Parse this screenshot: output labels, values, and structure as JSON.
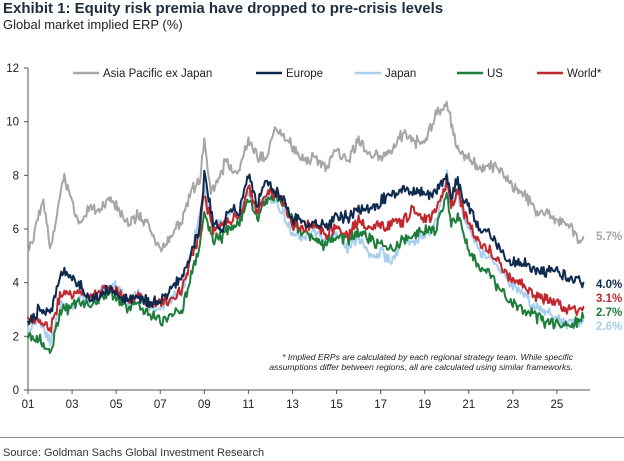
{
  "header": {
    "title": "Exhibit 1: Equity risk premia have dropped to pre-crisis levels",
    "subtitle": "Global market implied ERP (%)"
  },
  "footer": {
    "source": "Source: Goldman Sachs Global Investment Research"
  },
  "chart_data": {
    "type": "line",
    "title": "Global market implied ERP (%)",
    "xlabel": "",
    "ylabel": "",
    "xlim": [
      2001,
      2026.5
    ],
    "ylim": [
      0,
      12
    ],
    "yticks": [
      0,
      2,
      4,
      6,
      8,
      10,
      12
    ],
    "xticks": [
      {
        "value": 2001,
        "label": "01"
      },
      {
        "value": 2003,
        "label": "03"
      },
      {
        "value": 2005,
        "label": "05"
      },
      {
        "value": 2007,
        "label": "07"
      },
      {
        "value": 2009,
        "label": "09"
      },
      {
        "value": 2011,
        "label": "11"
      },
      {
        "value": 2013,
        "label": "13"
      },
      {
        "value": 2015,
        "label": "15"
      },
      {
        "value": 2017,
        "label": "17"
      },
      {
        "value": 2019,
        "label": "19"
      },
      {
        "value": 2021,
        "label": "21"
      },
      {
        "value": 2023,
        "label": "23"
      },
      {
        "value": 2025,
        "label": "25"
      }
    ],
    "grid": false,
    "legend_position": "top",
    "annotation": "* Implied ERPs are calculated by each regional strategy team. While specific assumptions differ between regions, all are calculated using similar frameworks.",
    "series": [
      {
        "name": "Asia Pacific ex Japan",
        "color": "#a6a6a6",
        "end_label": "5.7%",
        "x": [
          2001.0,
          2001.3,
          2001.7,
          2002.0,
          2002.3,
          2002.6,
          2003.0,
          2003.4,
          2003.8,
          2004.2,
          2004.6,
          2005.0,
          2005.5,
          2006.0,
          2006.5,
          2007.0,
          2007.5,
          2008.0,
          2008.4,
          2008.8,
          2009.0,
          2009.3,
          2009.7,
          2010.0,
          2010.5,
          2011.0,
          2011.5,
          2011.9,
          2012.2,
          2012.6,
          2013.0,
          2013.5,
          2014.0,
          2014.5,
          2015.0,
          2015.5,
          2016.0,
          2016.5,
          2017.0,
          2017.5,
          2018.0,
          2018.5,
          2019.0,
          2019.5,
          2020.0,
          2020.2,
          2020.5,
          2020.8,
          2021.0,
          2021.5,
          2022.0,
          2022.5,
          2023.0,
          2023.5,
          2024.0,
          2024.5,
          2025.0,
          2025.5,
          2026.0,
          2026.2
        ],
        "y": [
          5.1,
          5.8,
          7.1,
          5.3,
          6.4,
          8.0,
          6.9,
          6.2,
          6.8,
          6.7,
          7.0,
          6.9,
          6.2,
          6.5,
          6.1,
          5.2,
          5.8,
          6.4,
          7.4,
          7.8,
          9.3,
          7.4,
          7.9,
          8.6,
          7.9,
          9.3,
          8.6,
          8.9,
          9.8,
          9.5,
          9.1,
          8.5,
          8.7,
          8.2,
          9.0,
          8.5,
          9.3,
          8.8,
          8.7,
          8.9,
          9.6,
          9.3,
          9.1,
          10.3,
          10.7,
          10.0,
          9.0,
          8.6,
          8.7,
          8.2,
          8.4,
          8.1,
          7.5,
          7.4,
          6.6,
          6.6,
          6.2,
          6.3,
          5.6,
          5.7
        ]
      },
      {
        "name": "Europe",
        "color": "#0e2a4f",
        "end_label": "4.0%",
        "x": [
          2001.0,
          2001.5,
          2002.0,
          2002.5,
          2003.0,
          2003.4,
          2003.8,
          2004.2,
          2004.6,
          2005.0,
          2005.5,
          2006.0,
          2006.5,
          2007.0,
          2007.5,
          2008.0,
          2008.4,
          2008.8,
          2009.0,
          2009.4,
          2009.8,
          2010.2,
          2010.6,
          2011.0,
          2011.4,
          2011.8,
          2012.2,
          2012.6,
          2013.0,
          2013.5,
          2014.0,
          2014.5,
          2015.0,
          2015.5,
          2016.0,
          2016.5,
          2017.0,
          2017.5,
          2018.0,
          2018.5,
          2019.0,
          2019.5,
          2020.0,
          2020.2,
          2020.5,
          2020.8,
          2021.0,
          2021.5,
          2022.0,
          2022.5,
          2023.0,
          2023.5,
          2024.0,
          2024.5,
          2025.0,
          2025.5,
          2026.0,
          2026.2
        ],
        "y": [
          2.4,
          3.0,
          2.8,
          4.4,
          4.2,
          3.9,
          3.4,
          3.5,
          3.7,
          3.6,
          3.3,
          3.4,
          3.3,
          3.3,
          3.7,
          4.2,
          5.2,
          6.1,
          8.0,
          6.3,
          6.0,
          6.8,
          6.6,
          8.1,
          6.8,
          7.9,
          7.4,
          7.1,
          6.4,
          6.2,
          6.3,
          6.0,
          6.6,
          6.4,
          6.8,
          6.7,
          7.0,
          7.3,
          7.4,
          7.5,
          7.3,
          7.4,
          8.0,
          7.2,
          7.8,
          7.1,
          6.8,
          6.0,
          5.8,
          5.1,
          4.7,
          4.8,
          4.5,
          4.4,
          4.5,
          4.1,
          4.1,
          4.0
        ]
      },
      {
        "name": "Japan",
        "color": "#a8cfee",
        "end_label": "2.6%",
        "x": [
          2001.0,
          2001.5,
          2002.0,
          2002.5,
          2003.0,
          2003.4,
          2003.8,
          2004.2,
          2004.6,
          2005.0,
          2005.5,
          2006.0,
          2006.5,
          2007.0,
          2007.5,
          2008.0,
          2008.4,
          2008.8,
          2009.0,
          2009.4,
          2009.8,
          2010.2,
          2010.6,
          2011.0,
          2011.4,
          2011.8,
          2012.2,
          2012.6,
          2013.0,
          2013.5,
          2014.0,
          2014.5,
          2015.0,
          2015.5,
          2016.0,
          2016.5,
          2017.0,
          2017.5,
          2018.0,
          2018.5,
          2019.0,
          2019.5,
          2020.0,
          2020.2,
          2020.5,
          2020.8,
          2021.0,
          2021.5,
          2022.0,
          2022.5,
          2023.0,
          2023.5,
          2024.0,
          2024.5,
          2025.0,
          2025.5,
          2026.0,
          2026.2
        ],
        "y": [
          2.2,
          2.6,
          1.8,
          3.2,
          3.0,
          3.5,
          3.3,
          3.7,
          3.8,
          3.9,
          3.2,
          3.6,
          3.2,
          3.1,
          3.4,
          3.7,
          5.0,
          6.5,
          7.5,
          6.2,
          6.2,
          6.6,
          6.4,
          7.5,
          6.6,
          7.2,
          7.0,
          6.6,
          5.8,
          5.7,
          5.9,
          5.6,
          5.8,
          5.3,
          5.7,
          5.0,
          5.1,
          4.8,
          5.6,
          5.6,
          5.7,
          6.2,
          8.0,
          6.8,
          7.4,
          6.4,
          6.1,
          5.2,
          4.9,
          4.5,
          3.9,
          3.6,
          3.1,
          2.9,
          2.6,
          2.4,
          2.4,
          2.6
        ]
      },
      {
        "name": "US",
        "color": "#1e7d3a",
        "end_label": "2.7%",
        "x": [
          2001.0,
          2001.5,
          2002.0,
          2002.5,
          2003.0,
          2003.4,
          2003.8,
          2004.2,
          2004.6,
          2005.0,
          2005.5,
          2006.0,
          2006.5,
          2007.0,
          2007.5,
          2008.0,
          2008.4,
          2008.8,
          2009.0,
          2009.4,
          2009.8,
          2010.2,
          2010.6,
          2011.0,
          2011.4,
          2011.8,
          2012.2,
          2012.6,
          2013.0,
          2013.5,
          2014.0,
          2014.5,
          2015.0,
          2015.5,
          2016.0,
          2016.5,
          2017.0,
          2017.5,
          2018.0,
          2018.5,
          2019.0,
          2019.5,
          2020.0,
          2020.2,
          2020.5,
          2020.8,
          2021.0,
          2021.5,
          2022.0,
          2022.5,
          2023.0,
          2023.5,
          2024.0,
          2024.5,
          2025.0,
          2025.5,
          2026.0,
          2026.2
        ],
        "y": [
          2.0,
          1.9,
          1.3,
          3.0,
          3.1,
          3.3,
          3.2,
          3.4,
          3.6,
          3.5,
          3.0,
          3.2,
          2.8,
          2.6,
          2.8,
          3.0,
          4.3,
          5.4,
          6.7,
          5.6,
          5.7,
          6.1,
          6.3,
          7.2,
          6.4,
          7.0,
          7.2,
          6.9,
          6.3,
          5.9,
          5.6,
          5.4,
          5.8,
          5.6,
          5.9,
          5.6,
          5.4,
          5.3,
          5.6,
          5.8,
          5.9,
          5.9,
          7.3,
          6.2,
          6.5,
          5.8,
          5.2,
          4.5,
          4.3,
          3.6,
          3.3,
          3.0,
          2.8,
          2.5,
          2.5,
          2.3,
          2.6,
          2.7
        ]
      },
      {
        "name": "World*",
        "color": "#c0282d",
        "end_label": "3.1%",
        "x": [
          2001.0,
          2001.5,
          2002.0,
          2002.5,
          2003.0,
          2003.4,
          2003.8,
          2004.2,
          2004.6,
          2005.0,
          2005.5,
          2006.0,
          2006.5,
          2007.0,
          2007.5,
          2008.0,
          2008.4,
          2008.8,
          2009.0,
          2009.4,
          2009.8,
          2010.2,
          2010.6,
          2011.0,
          2011.4,
          2011.8,
          2012.2,
          2012.6,
          2013.0,
          2013.5,
          2014.0,
          2014.5,
          2015.0,
          2015.5,
          2016.0,
          2016.5,
          2017.0,
          2017.5,
          2018.0,
          2018.5,
          2019.0,
          2019.5,
          2020.0,
          2020.2,
          2020.5,
          2020.8,
          2021.0,
          2021.5,
          2022.0,
          2022.5,
          2023.0,
          2023.5,
          2024.0,
          2024.5,
          2025.0,
          2025.5,
          2026.0,
          2026.2
        ],
        "y": [
          2.5,
          2.7,
          2.2,
          3.6,
          3.6,
          3.6,
          3.5,
          3.6,
          3.8,
          3.7,
          3.3,
          3.5,
          3.2,
          3.2,
          3.4,
          3.7,
          4.9,
          5.9,
          7.3,
          6.0,
          6.1,
          6.4,
          6.4,
          7.6,
          6.6,
          7.4,
          7.3,
          7.0,
          6.2,
          6.0,
          6.2,
          5.8,
          6.1,
          5.8,
          6.3,
          6.1,
          6.1,
          6.2,
          6.3,
          6.7,
          6.4,
          6.6,
          7.8,
          6.9,
          7.4,
          6.6,
          6.2,
          5.4,
          5.2,
          4.5,
          4.1,
          3.9,
          3.5,
          3.4,
          3.3,
          3.0,
          3.0,
          3.1
        ]
      }
    ]
  }
}
